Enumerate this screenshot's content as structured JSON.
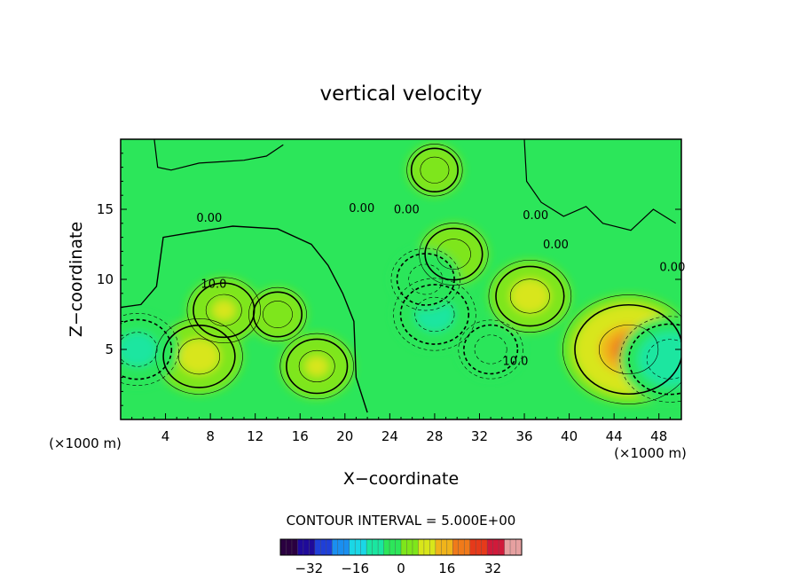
{
  "chart_data": {
    "type": "heatmap",
    "title": "vertical velocity",
    "xlabel": "X−coordinate",
    "ylabel": "Z−coordinate",
    "x_unit_left": "(×1000 m)",
    "x_unit_right": "(×1000 m)",
    "xlim": [
      0,
      50
    ],
    "ylim": [
      0,
      20
    ],
    "x_ticks": [
      4,
      8,
      12,
      16,
      20,
      24,
      28,
      32,
      36,
      40,
      44,
      48
    ],
    "y_ticks": [
      5,
      10,
      15
    ],
    "contour_interval_text": "CONTOUR INTERVAL = 5.000E+00",
    "contour_labels": [
      "0.00",
      "10.0",
      "0.00",
      "0.00",
      "0.00",
      "0.00",
      "10.0",
      "0.00"
    ],
    "colorbar": {
      "min": -42,
      "max": 42,
      "ticks": [
        "−32",
        "−16",
        "0",
        "16",
        "32"
      ],
      "tick_values": [
        -32,
        -16,
        0,
        16,
        32
      ],
      "colors": [
        "#2a0040",
        "#1f0a9a",
        "#1f3fd8",
        "#1a8ff0",
        "#1ad7e6",
        "#1ae6a0",
        "#2ce65a",
        "#7ee61a",
        "#d8e61a",
        "#f0b41a",
        "#f07a1a",
        "#e63a1a",
        "#d01a3a",
        "#e6a0a0"
      ]
    },
    "background_value": 0,
    "blobs": [
      {
        "x": 7,
        "z": 4.5,
        "w": 9,
        "kind": "up"
      },
      {
        "x": 9.2,
        "z": 7.8,
        "w": 6,
        "kind": "up"
      },
      {
        "x": 17.5,
        "z": 3.8,
        "w": 6,
        "kind": "up"
      },
      {
        "x": 14,
        "z": 7.5,
        "w": 2.5,
        "kind": "up"
      },
      {
        "x": 29.7,
        "z": 11.8,
        "w": 5,
        "kind": "up"
      },
      {
        "x": 36.5,
        "z": 8.8,
        "w": 8,
        "kind": "up"
      },
      {
        "x": 45.3,
        "z": 5,
        "w": 19,
        "kind": "up"
      },
      {
        "x": 28,
        "z": 7.5,
        "w": -8,
        "kind": "down"
      },
      {
        "x": 27.2,
        "z": 10,
        "w": -5,
        "kind": "down"
      },
      {
        "x": 1.5,
        "z": 5,
        "w": -8,
        "kind": "down"
      },
      {
        "x": 49,
        "z": 4.3,
        "w": -12,
        "kind": "down"
      },
      {
        "x": 33,
        "z": 5,
        "w": -4,
        "kind": "down"
      },
      {
        "x": 28,
        "z": 17.8,
        "w": 2,
        "kind": "up"
      }
    ]
  }
}
